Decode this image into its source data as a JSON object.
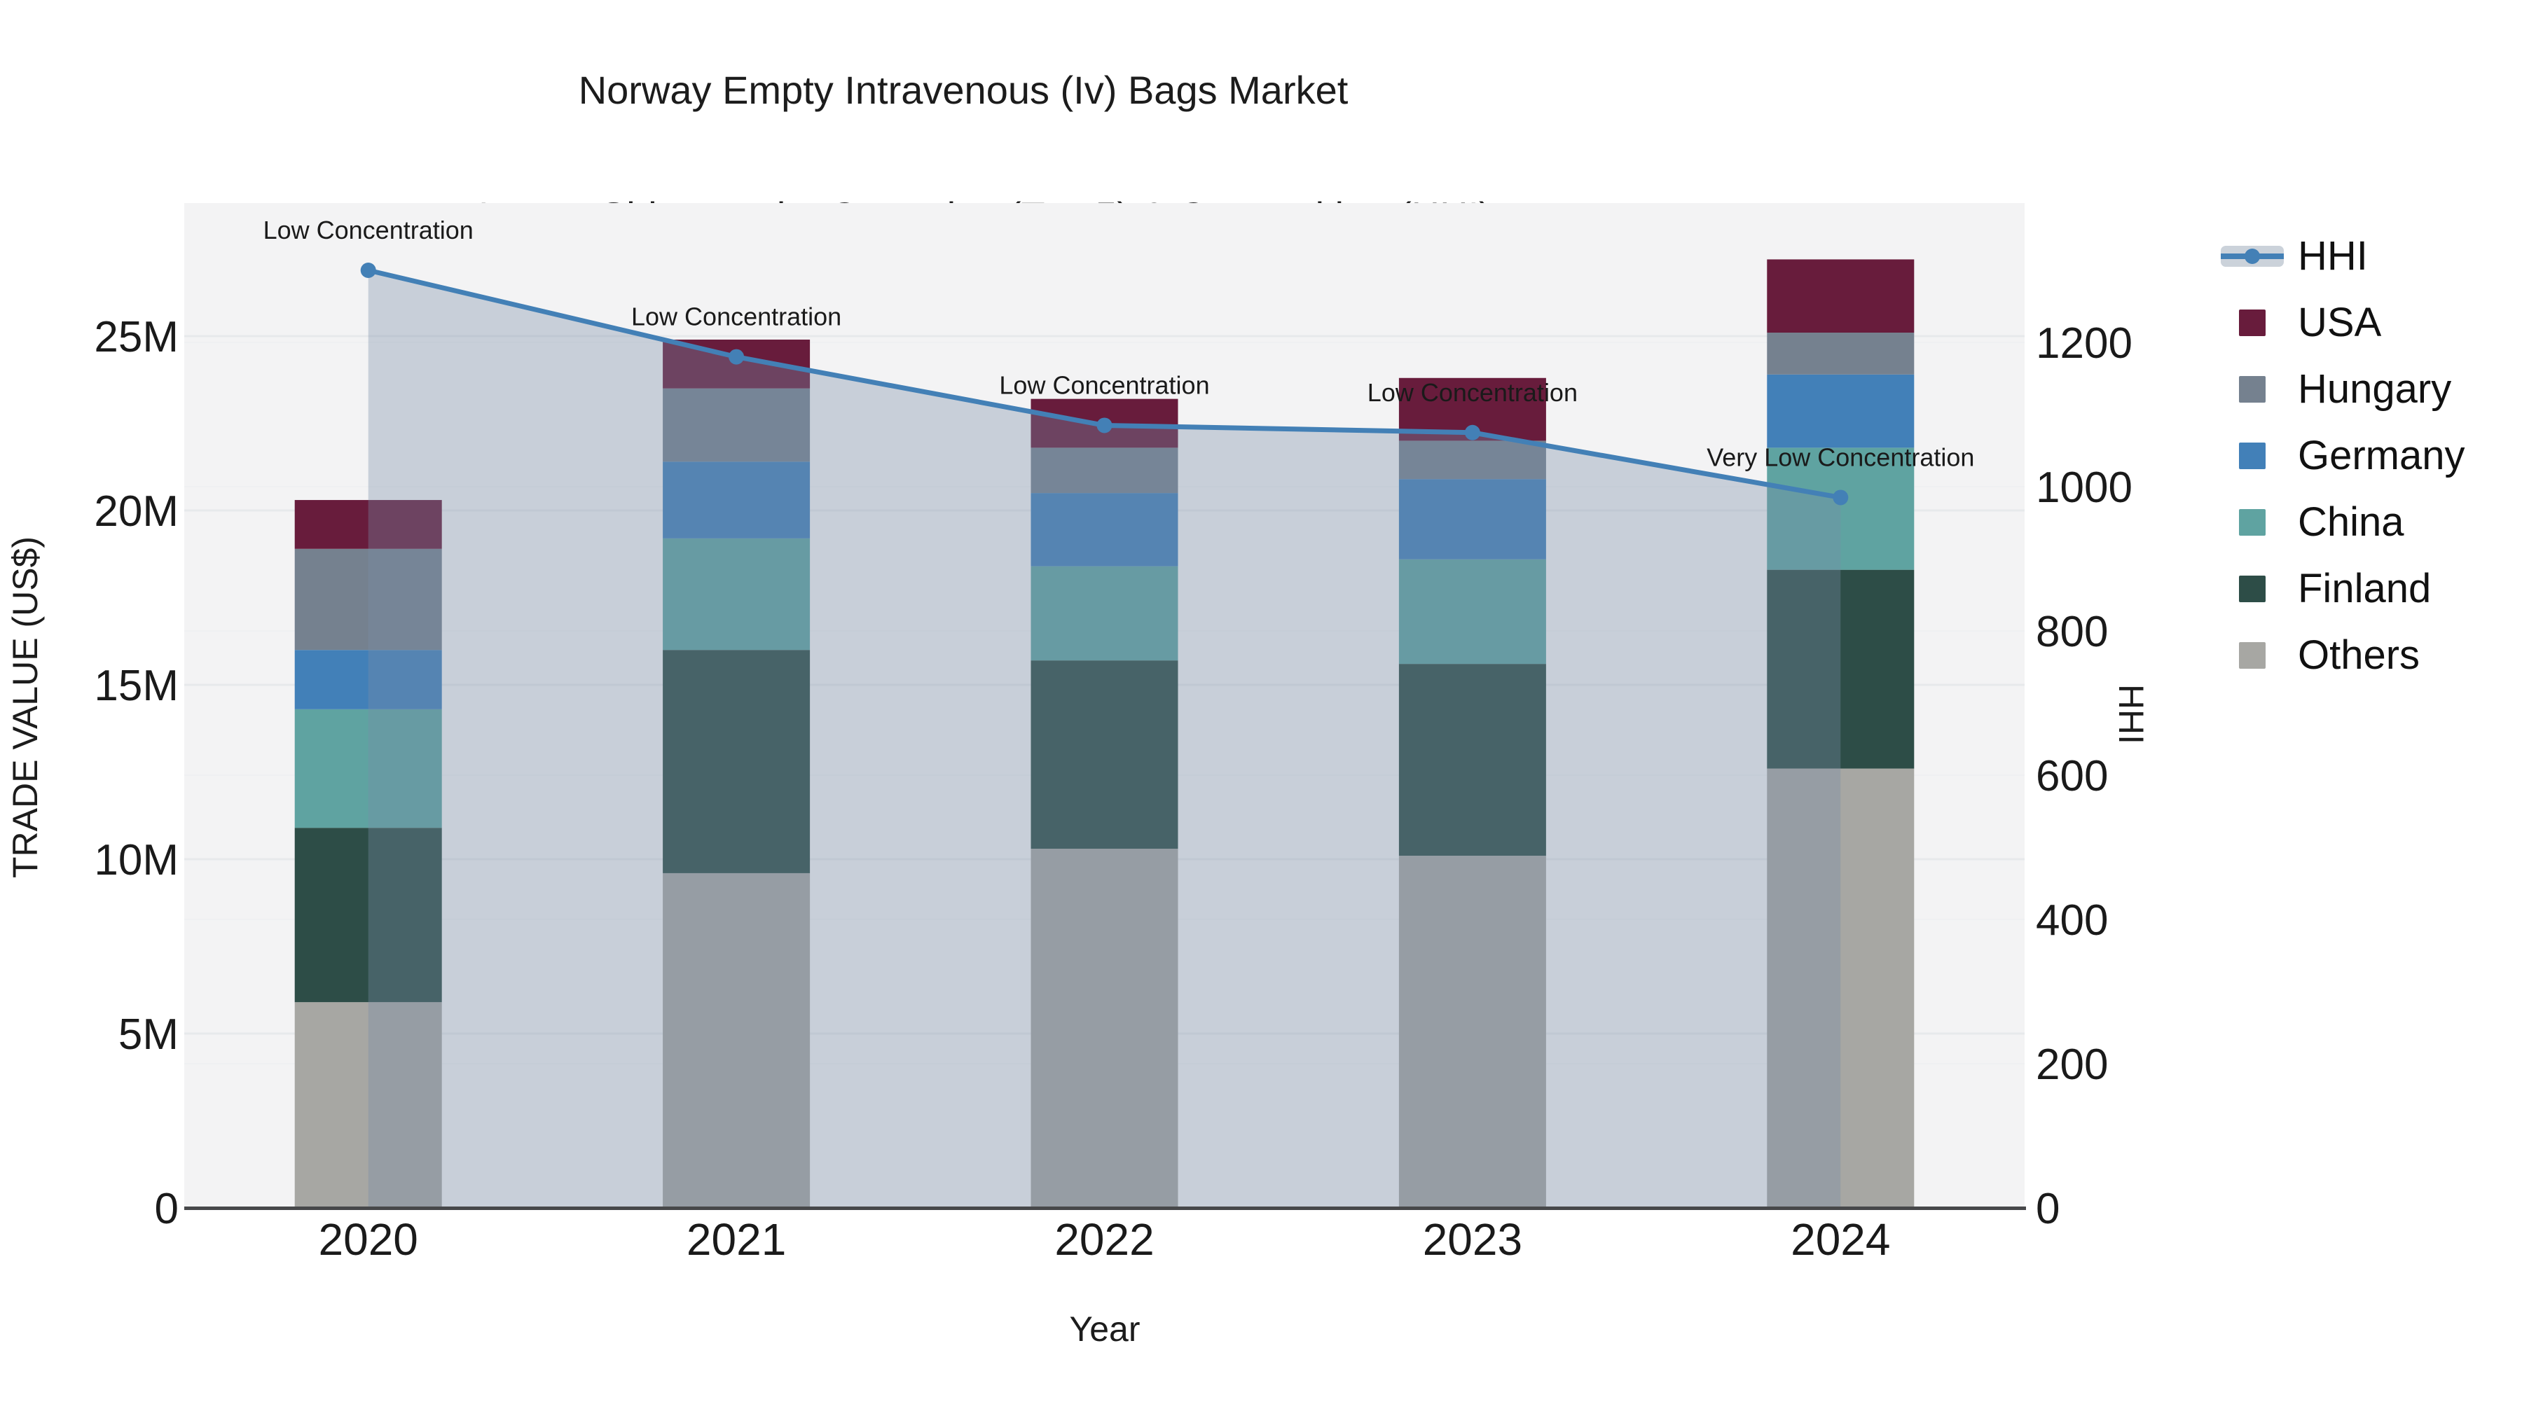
{
  "title": {
    "line1": "Norway Empty Intravenous (Iv) Bags Market",
    "line2": "Import Shipment by Countries (Top 5) & Competition (HHI)"
  },
  "colors": {
    "plot_background": "#F3F3F4",
    "grid_major": "#E7E9EB",
    "grid_minor": "#EFF0F2",
    "axis_line": "#47484A",
    "text": "#1A1A1A",
    "hhi_line": "#4380B6",
    "hhi_fill": "rgba(120,140,165,0.35)"
  },
  "legend": {
    "items": [
      {
        "label": "HHI",
        "type": "line",
        "color": "#4380B6"
      },
      {
        "label": "USA",
        "type": "swatch",
        "color": "#681C3C"
      },
      {
        "label": "Hungary",
        "type": "swatch",
        "color": "#75818F"
      },
      {
        "label": "Germany",
        "type": "swatch",
        "color": "#4280B8"
      },
      {
        "label": "China",
        "type": "swatch",
        "color": "#5FA3A1"
      },
      {
        "label": "Finland",
        "type": "swatch",
        "color": "#2D4D47"
      },
      {
        "label": "Others",
        "type": "swatch",
        "color": "#A7A7A3"
      }
    ]
  },
  "chart_data": {
    "type": "bar",
    "subtype": "stacked-bar-with-line",
    "title": "Norway Empty Intravenous (Iv) Bags Market Import Shipment by Countries (Top 5) & Competition (HHI)",
    "categories": [
      "2020",
      "2021",
      "2022",
      "2023",
      "2024"
    ],
    "unit": "million US$",
    "series": [
      {
        "name": "Others",
        "color": "#A7A7A3",
        "values": [
          5.9,
          9.6,
          10.3,
          10.1,
          12.6
        ]
      },
      {
        "name": "Finland",
        "color": "#2D4D47",
        "values": [
          5.0,
          6.4,
          5.4,
          5.5,
          5.7
        ]
      },
      {
        "name": "China",
        "color": "#5FA3A1",
        "values": [
          3.4,
          3.2,
          2.7,
          3.0,
          3.5
        ]
      },
      {
        "name": "Germany",
        "color": "#4280B8",
        "values": [
          1.7,
          2.2,
          2.1,
          2.3,
          2.1
        ]
      },
      {
        "name": "Hungary",
        "color": "#75818F",
        "values": [
          2.9,
          2.1,
          1.3,
          1.1,
          1.2
        ]
      },
      {
        "name": "USA",
        "color": "#681C3C",
        "values": [
          1.4,
          1.4,
          1.4,
          1.8,
          2.1
        ]
      }
    ],
    "line_series": {
      "name": "HHI",
      "axis": "right",
      "color": "#4380B6",
      "area_fill": true,
      "fill_color": "rgba(120,140,165,0.35)",
      "values": [
        1300,
        1180,
        1085,
        1075,
        985
      ]
    },
    "annotations": [
      {
        "category": "2020",
        "text": "Low Concentration"
      },
      {
        "category": "2021",
        "text": "Low Concentration"
      },
      {
        "category": "2022",
        "text": "Low Concentration"
      },
      {
        "category": "2023",
        "text": "Low Concentration"
      },
      {
        "category": "2024",
        "text": "Very Low Concentration"
      }
    ],
    "xlabel": "Year",
    "ylabel": "TRADE VALUE (US$)",
    "ylabel_right": "HHI",
    "y_left_ticks": {
      "labels": [
        "0",
        "5M",
        "10M",
        "15M",
        "20M",
        "25M"
      ],
      "values": [
        0,
        5,
        10,
        15,
        20,
        25
      ]
    },
    "y_right_ticks": {
      "labels": [
        "0",
        "200",
        "400",
        "600",
        "800",
        "1000",
        "1200"
      ],
      "values": [
        0,
        200,
        400,
        600,
        800,
        1000,
        1200
      ]
    },
    "ylim_left": [
      0,
      28.9
    ],
    "ylim_right": [
      0,
      1390
    ],
    "grid": "horizontal",
    "legend_position": "right"
  }
}
